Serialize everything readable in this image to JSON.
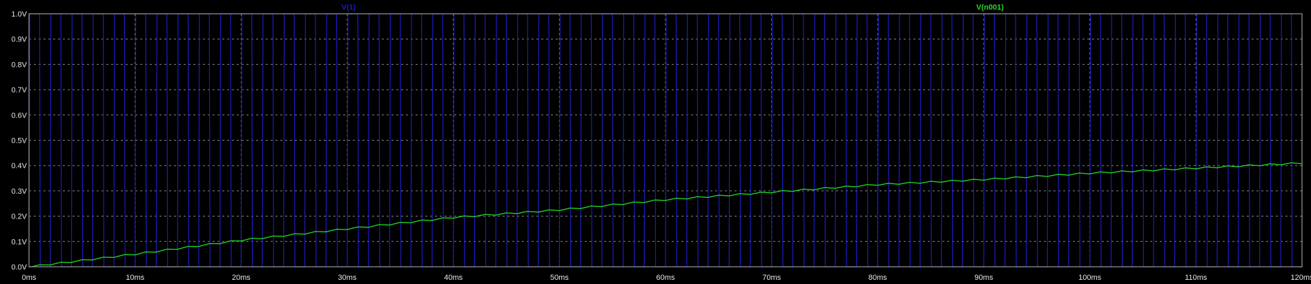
{
  "chart_data": {
    "type": "line",
    "title": "",
    "xlabel": "",
    "ylabel": "",
    "xlim": [
      0,
      120
    ],
    "ylim": [
      0,
      1.0
    ],
    "grid": true,
    "x_ticks": [
      "0ms",
      "10ms",
      "20ms",
      "30ms",
      "40ms",
      "50ms",
      "60ms",
      "70ms",
      "80ms",
      "90ms",
      "100ms",
      "110ms",
      "120ms"
    ],
    "y_ticks": [
      "0.0V",
      "0.1V",
      "0.2V",
      "0.3V",
      "0.4V",
      "0.5V",
      "0.6V",
      "0.7V",
      "0.8V",
      "0.9V",
      "1.0V"
    ],
    "colors": {
      "background": "#000000",
      "frame": "#9a9a9a",
      "grid": "#8a8a8a",
      "axis_text": "#e6e6e6"
    },
    "series": [
      {
        "name": "V(1)",
        "color": "#1c1cc8",
        "shape": "square",
        "low": 0,
        "high": 1,
        "period_ms": 2,
        "duty": 0.5,
        "start_ms": 0,
        "end_ms": 120
      },
      {
        "name": "V(n001)",
        "color": "#22dd22",
        "x": [
          0,
          10,
          20,
          30,
          40,
          50,
          60,
          70,
          80,
          90,
          100,
          110,
          120
        ],
        "y": [
          0.0,
          0.05,
          0.105,
          0.15,
          0.195,
          0.225,
          0.265,
          0.295,
          0.325,
          0.345,
          0.37,
          0.39,
          0.41
        ]
      }
    ]
  }
}
